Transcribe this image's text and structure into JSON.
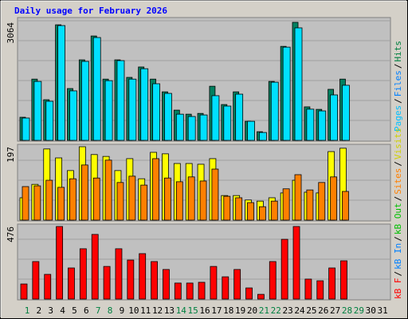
{
  "chart_data": [
    {
      "type": "bar",
      "title": "Daily usage for February 2026",
      "ylim": [
        0,
        3064
      ],
      "yticks": [
        3064
      ],
      "legend_separator": "/",
      "series": [
        {
          "name": "Hits",
          "color": "#008060",
          "values": [
            600,
            1590,
            1055,
            3000,
            1345,
            2090,
            2710,
            1590,
            2090,
            1635,
            1905,
            1590,
            1260,
            785,
            680,
            700,
            1405,
            930,
            1260,
            495,
            225,
            1530,
            2440,
            3064,
            870,
            805,
            1325,
            1590,
            null,
            null,
            null
          ]
        },
        {
          "name": "Files",
          "color": "#00e0ff",
          "values": [
            580,
            1530,
            1015,
            2980,
            1285,
            2050,
            2670,
            1550,
            2070,
            1590,
            1860,
            1470,
            1220,
            680,
            620,
            660,
            1160,
            890,
            1200,
            495,
            205,
            1510,
            2420,
            2920,
            810,
            765,
            1180,
            1430,
            null,
            null,
            null
          ]
        },
        {
          "name": "Pages",
          "color": "#00c0ff",
          "values": [
            0,
            0,
            0,
            0,
            0,
            0,
            0,
            0,
            0,
            0,
            0,
            0,
            0,
            0,
            0,
            0,
            0,
            0,
            0,
            0,
            0,
            0,
            0,
            0,
            0,
            0,
            0,
            0,
            null,
            null,
            null
          ]
        }
      ],
      "legend_colors": [
        "#00c0ff",
        "#0080ff",
        "#008040"
      ]
    },
    {
      "type": "bar",
      "ylim": [
        0,
        197
      ],
      "yticks": [
        197
      ],
      "series": [
        {
          "name": "Visits",
          "color": "#ffff00",
          "values": [
            60,
            96,
            191,
            167,
            133,
            197,
            176,
            171,
            133,
            165,
            111,
            182,
            178,
            152,
            152,
            150,
            165,
            66,
            66,
            54,
            51,
            60,
            73,
            107,
            75,
            73,
            184,
            193,
            null,
            null,
            null
          ]
        },
        {
          "name": "Sites",
          "color": "#ff8000",
          "values": [
            90,
            92,
            107,
            88,
            111,
            148,
            113,
            161,
            101,
            118,
            94,
            165,
            113,
            103,
            116,
            105,
            137,
            64,
            60,
            47,
            36,
            51,
            84,
            122,
            81,
            101,
            116,
            77,
            null,
            null,
            null
          ]
        }
      ]
    },
    {
      "type": "bar",
      "ylim": [
        0,
        476
      ],
      "yticks": [
        476
      ],
      "categories": [
        "1",
        "2",
        "3",
        "4",
        "5",
        "6",
        "7",
        "8",
        "9",
        "10",
        "11",
        "12",
        "13",
        "14",
        "15",
        "16",
        "17",
        "18",
        "19",
        "20",
        "21",
        "22",
        "23",
        "24",
        "25",
        "26",
        "27",
        "28",
        "29",
        "30",
        "31"
      ],
      "category_label_colors": [
        "#008040",
        "#000000",
        "#000000",
        "#000000",
        "#000000",
        "#000000",
        "#008040",
        "#008040",
        "#000000",
        "#000000",
        "#000000",
        "#000000",
        "#000000",
        "#008040",
        "#008040",
        "#000000",
        "#000000",
        "#000000",
        "#000000",
        "#000000",
        "#008040",
        "#008040",
        "#000000",
        "#000000",
        "#000000",
        "#000000",
        "#000000",
        "#008040",
        "#008040",
        "#000000",
        "#000000"
      ],
      "series": [
        {
          "name": "kB F",
          "color": "#ff0000",
          "values": [
            99,
            246,
            162,
            476,
            204,
            330,
            424,
            214,
            330,
            256,
            298,
            246,
            194,
            105,
            105,
            110,
            214,
            146,
            194,
            73,
            31,
            246,
            392,
            476,
            131,
            120,
            204,
            251,
            null,
            null,
            null
          ]
        },
        {
          "name": "kB In",
          "color": "#0080ff",
          "values": [
            0,
            0,
            0,
            0,
            0,
            0,
            0,
            0,
            0,
            0,
            0,
            0,
            0,
            0,
            0,
            0,
            0,
            0,
            0,
            0,
            0,
            0,
            0,
            0,
            0,
            0,
            0,
            0,
            null,
            null,
            null
          ]
        },
        {
          "name": "kB Out",
          "color": "#00c000",
          "values": [
            0,
            0,
            0,
            0,
            0,
            0,
            0,
            0,
            0,
            0,
            0,
            0,
            0,
            0,
            0,
            0,
            0,
            0,
            0,
            0,
            0,
            0,
            0,
            0,
            0,
            0,
            0,
            0,
            null,
            null,
            null
          ]
        }
      ]
    }
  ]
}
